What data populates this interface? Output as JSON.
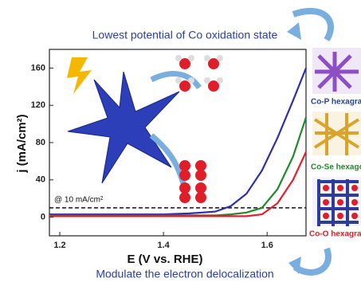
{
  "chart_data": {
    "type": "line",
    "title": "Lowest potential of Co oxidation state",
    "subtitle": "Modulate the electron delocalization",
    "x_label": "E (V vs. RHE)",
    "y_label": "j (mA/cm²)",
    "annotation": "@ 10 mA/cm²",
    "reference_line": 10,
    "panel_labels": [
      "Co-P hexagra",
      "Co-Se hexago",
      "Co-O hexagra"
    ],
    "x": [
      1.18,
      1.3,
      1.4,
      1.45,
      1.5,
      1.53,
      1.56,
      1.59,
      1.62,
      1.65,
      1.675
    ],
    "series": [
      {
        "color": "#2b2fa8",
        "values": [
          3,
          3,
          3,
          4,
          6,
          12,
          25,
          50,
          85,
          125,
          160
        ]
      },
      {
        "color": "#1e8a2a",
        "values": [
          2,
          2,
          2,
          2,
          2,
          3,
          5,
          10,
          30,
          65,
          107
        ]
      },
      {
        "color": "#e0202a",
        "values": [
          1,
          1,
          1,
          1,
          1,
          1,
          1,
          3,
          15,
          40,
          70
        ]
      }
    ],
    "xlim": [
      1.18,
      1.675
    ],
    "xticks": [
      1.2,
      1.4,
      1.6
    ],
    "ylim": [
      -20,
      180
    ],
    "yticks": [
      0,
      40,
      80,
      120,
      160
    ]
  }
}
